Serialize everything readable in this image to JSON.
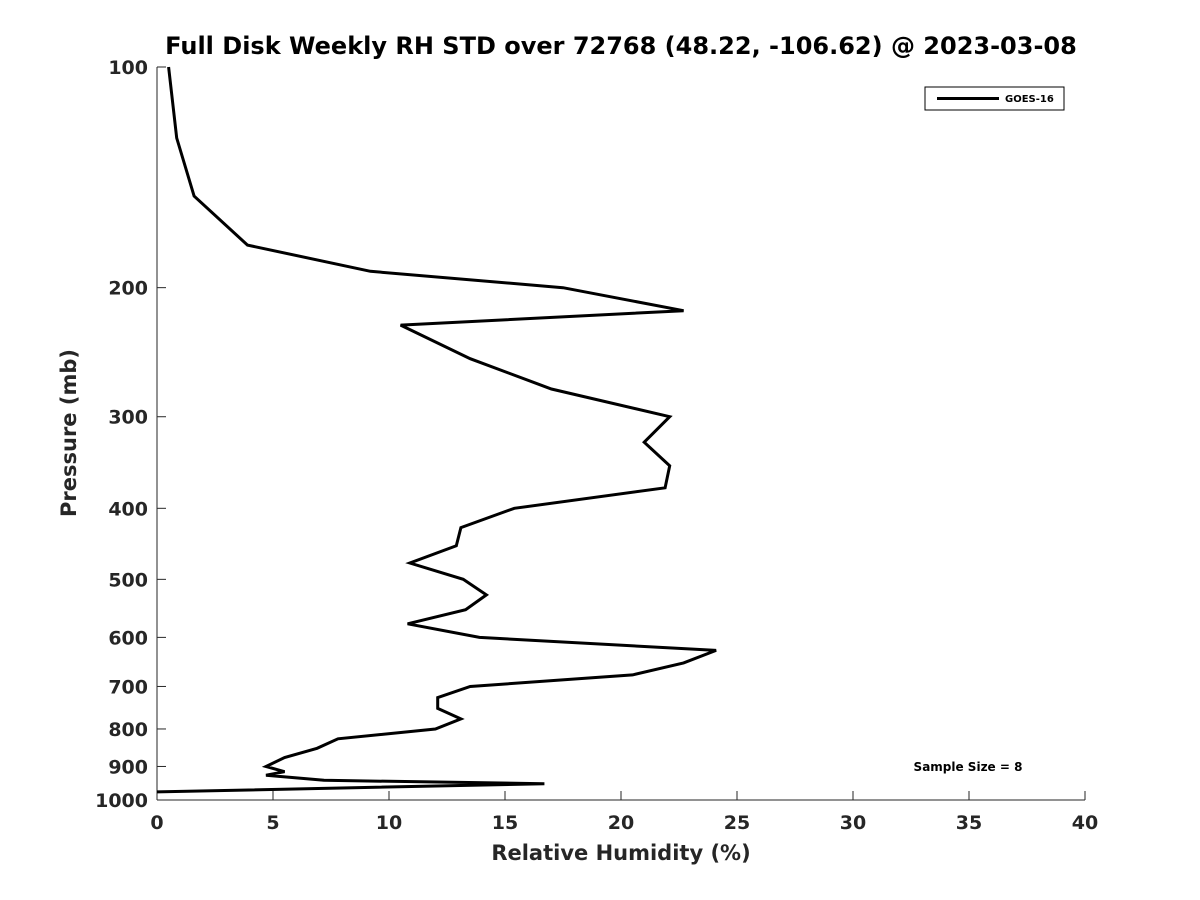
{
  "chart_data": {
    "type": "line",
    "title": "Full Disk Weekly RH STD over 72768 (48.22, -106.62) @ 2023-03-08",
    "xlabel": "Relative Humidity (%)",
    "ylabel": "Pressure (mb)",
    "xlim": [
      0,
      40
    ],
    "ylim": [
      100,
      1000
    ],
    "y_scale": "log",
    "y_inverted": true,
    "x_ticks": [
      "0",
      "5",
      "10",
      "15",
      "20",
      "25",
      "30",
      "35",
      "40"
    ],
    "y_ticks": [
      "100",
      "200",
      "300",
      "400",
      "500",
      "600",
      "700",
      "800",
      "900",
      "1000"
    ],
    "grid": false,
    "legend_position": "top-right",
    "annotation": "Sample Size = 8",
    "series": [
      {
        "name": "GOES-16",
        "color": "#000000",
        "points": [
          [
            0.5,
            100
          ],
          [
            0.85,
            125
          ],
          [
            1.6,
            150
          ],
          [
            3.9,
            175
          ],
          [
            9.2,
            190
          ],
          [
            17.5,
            200
          ],
          [
            22.7,
            215
          ],
          [
            10.5,
            225
          ],
          [
            13.5,
            250
          ],
          [
            17.0,
            275
          ],
          [
            22.1,
            300
          ],
          [
            21.0,
            325
          ],
          [
            22.1,
            350
          ],
          [
            21.9,
            375
          ],
          [
            15.4,
            400
          ],
          [
            13.1,
            425
          ],
          [
            12.9,
            450
          ],
          [
            10.9,
            475
          ],
          [
            13.2,
            500
          ],
          [
            14.2,
            525
          ],
          [
            13.3,
            550
          ],
          [
            10.8,
            575
          ],
          [
            13.9,
            600
          ],
          [
            24.1,
            625
          ],
          [
            22.7,
            650
          ],
          [
            20.5,
            675
          ],
          [
            13.5,
            700
          ],
          [
            12.1,
            725
          ],
          [
            12.1,
            750
          ],
          [
            13.1,
            775
          ],
          [
            12.0,
            800
          ],
          [
            7.8,
            825
          ],
          [
            6.9,
            850
          ],
          [
            5.5,
            875
          ],
          [
            4.7,
            900
          ],
          [
            5.5,
            915
          ],
          [
            4.7,
            925
          ],
          [
            7.2,
            940
          ],
          [
            16.7,
            950
          ],
          [
            0.0,
            975
          ]
        ]
      }
    ]
  }
}
